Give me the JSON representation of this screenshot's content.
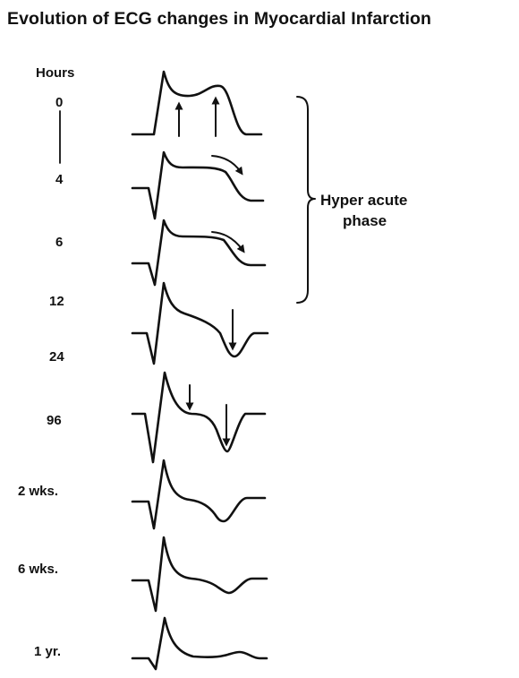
{
  "title": "Evolution of ECG changes in Myocardial Infarction",
  "hours_header": "Hours",
  "stages": [
    {
      "label": "0"
    },
    {
      "label": "4"
    },
    {
      "label": "6"
    },
    {
      "label": "12"
    },
    {
      "label": "24"
    },
    {
      "label": "96"
    },
    {
      "label": "2 wks."
    },
    {
      "label": "6 wks."
    },
    {
      "label": "1 yr."
    }
  ],
  "phase_annotation": {
    "line1": "Hyper acute",
    "line2": "phase"
  },
  "colors": {
    "ink": "#111111",
    "background": "#ffffff"
  }
}
